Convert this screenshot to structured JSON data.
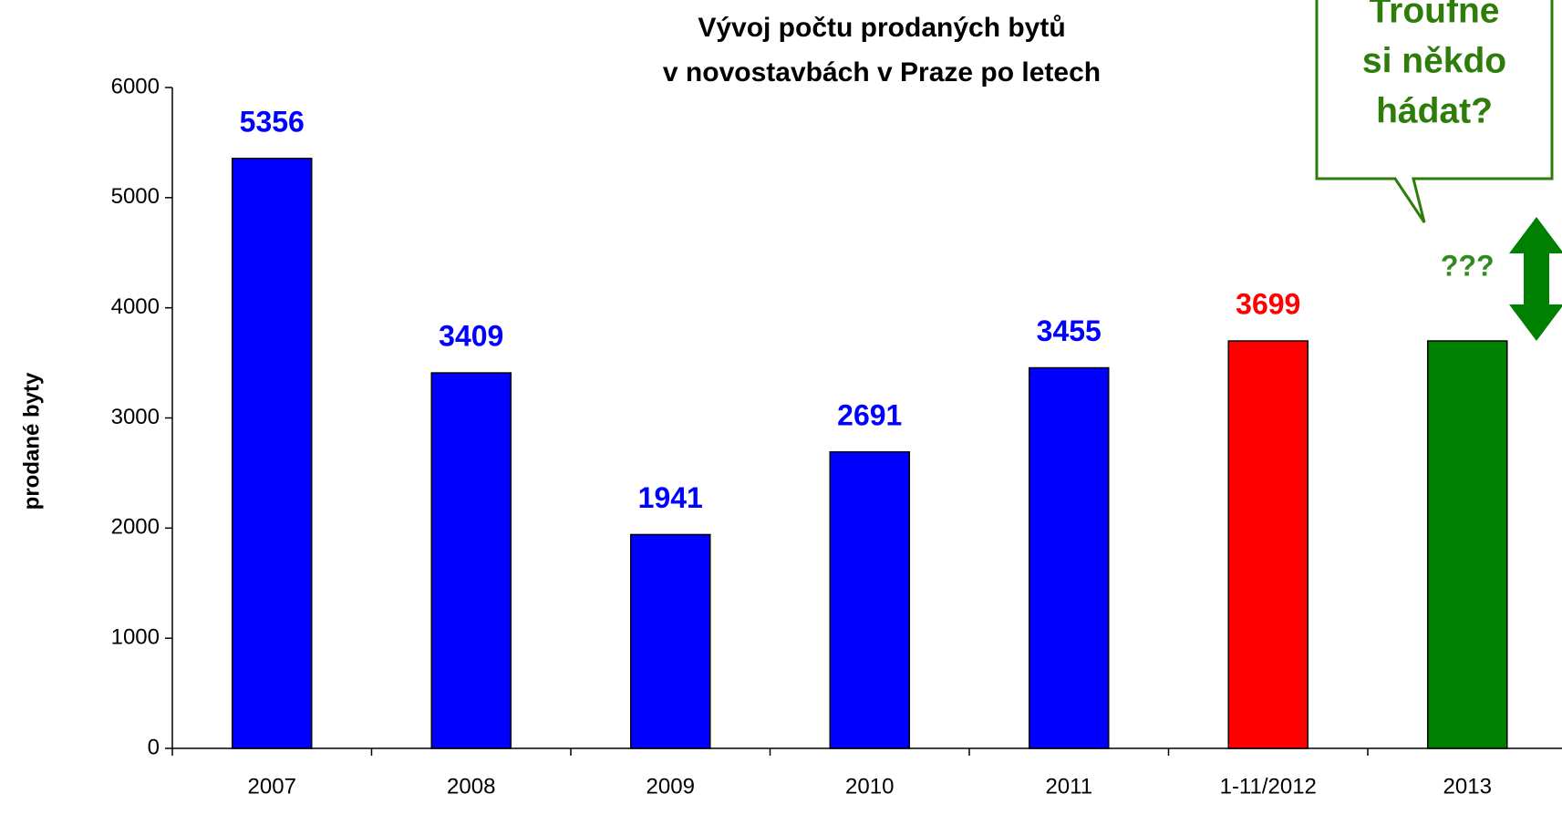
{
  "chart_data": {
    "type": "bar",
    "title": [
      "Vývoj počtu prodaných bytů",
      "v novostavbách v Praze po letech"
    ],
    "y_label": "prodané byty",
    "categories": [
      "2007",
      "2008",
      "2009",
      "2010",
      "2011",
      "1-11/2012",
      "2013"
    ],
    "values": [
      5356,
      3409,
      1941,
      2691,
      3455,
      3699,
      3699
    ],
    "value_labels": [
      "5356",
      "3409",
      "1941",
      "2691",
      "3455",
      "3699",
      null
    ],
    "colors": [
      "#0000ff",
      "#0000ff",
      "#0000ff",
      "#0000ff",
      "#0000ff",
      "#ff0000",
      "#008000"
    ],
    "label_colors": [
      "#0000ff",
      "#0000ff",
      "#0000ff",
      "#0000ff",
      "#0000ff",
      "#ff0000",
      "#008000"
    ],
    "ylim": [
      0,
      6000
    ],
    "yticks": [
      0,
      1000,
      2000,
      3000,
      4000,
      5000,
      6000
    ],
    "grid": false,
    "annotations": [
      {
        "text": "???",
        "category": 6,
        "color": "#2e8b1e"
      },
      {
        "lines": [
          "Troufne",
          "si někdo",
          "hádat?"
        ],
        "color": "#2e7d0a"
      }
    ]
  }
}
